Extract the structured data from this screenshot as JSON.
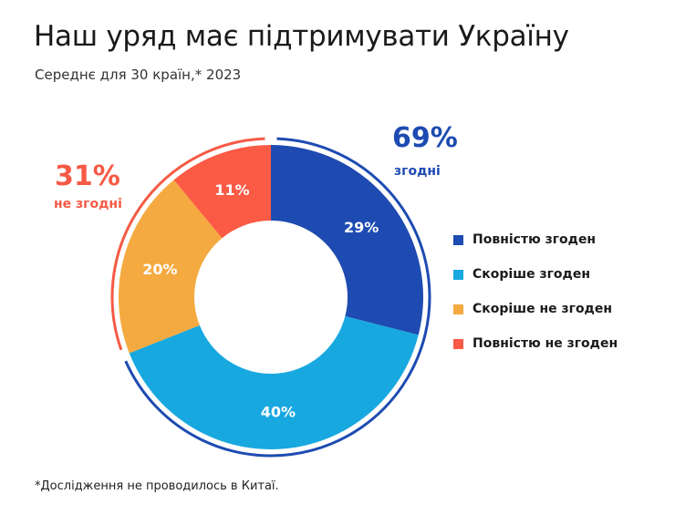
{
  "title": "Наш уряд має підтримувати Україну",
  "subtitle": "Середнє для 30 країн,* 2023",
  "summary": {
    "agree": {
      "pct": "69%",
      "label": "згодні",
      "color": "#1d4bb1"
    },
    "disagree": {
      "pct": "31%",
      "label": "не згодні",
      "color": "#f55a45"
    }
  },
  "chart_data": {
    "type": "pie",
    "donut": true,
    "title": "Наш уряд має підтримувати Україну",
    "subtitle": "Середнє для 30 країн,* 2023",
    "legend_position": "right",
    "categories": [
      "Повністю згоден",
      "Скоріше згоден",
      "Скоріше не згоден",
      "Повністю не згоден"
    ],
    "values": [
      29,
      40,
      20,
      11
    ],
    "labels": [
      "29%",
      "40%",
      "20%",
      "11%"
    ],
    "colors": [
      "#1d4bb1",
      "#18a8e0",
      "#f4aa40",
      "#fb5a45"
    ]
  },
  "footnote": "*Дослідження не проводилось в Китаї."
}
